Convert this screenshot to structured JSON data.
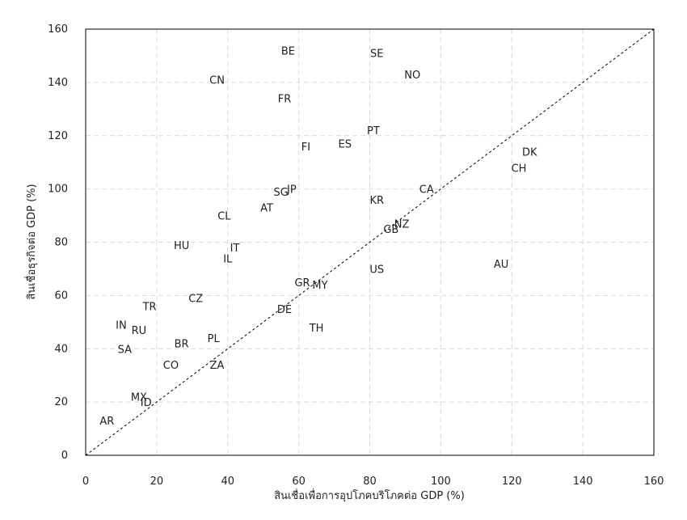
{
  "chart_data": {
    "type": "scatter",
    "xlabel": "สินเชื่อเพื่อการอุปโภคบริโภคต่อ GDP (%)",
    "ylabel": "สินเชื่อธุรกิจต่อ GDP (%)",
    "xlim": [
      0,
      160
    ],
    "ylim": [
      0,
      160
    ],
    "xticks": [
      "0",
      "20",
      "40",
      "60",
      "80",
      "100",
      "120",
      "140",
      "160"
    ],
    "yticks": [
      "0",
      "20",
      "40",
      "60",
      "80",
      "100",
      "120",
      "140",
      "160"
    ],
    "grid": "horizontal and vertical dashed",
    "reference_line": {
      "style": "dotted",
      "from": [
        0,
        0
      ],
      "to": [
        160,
        160
      ]
    },
    "points": [
      {
        "label": "BE",
        "x": 57,
        "y": 152
      },
      {
        "label": "SE",
        "x": 82,
        "y": 151
      },
      {
        "label": "NO",
        "x": 92,
        "y": 143
      },
      {
        "label": "CN",
        "x": 37,
        "y": 141
      },
      {
        "label": "FR",
        "x": 56,
        "y": 134
      },
      {
        "label": "PT",
        "x": 81,
        "y": 122
      },
      {
        "label": "ES",
        "x": 73,
        "y": 117
      },
      {
        "label": "FI",
        "x": 62,
        "y": 116
      },
      {
        "label": "DK",
        "x": 125,
        "y": 114
      },
      {
        "label": "CH",
        "x": 122,
        "y": 108
      },
      {
        "label": "SG",
        "x": 55,
        "y": 99
      },
      {
        "label": "JP",
        "x": 58,
        "y": 100
      },
      {
        "label": "CA",
        "x": 96,
        "y": 100
      },
      {
        "label": "KR",
        "x": 82,
        "y": 96
      },
      {
        "label": "AT",
        "x": 51,
        "y": 93
      },
      {
        "label": "CL",
        "x": 39,
        "y": 90
      },
      {
        "label": "NZ",
        "x": 89,
        "y": 87
      },
      {
        "label": "GB",
        "x": 86,
        "y": 85
      },
      {
        "label": "HU",
        "x": 27,
        "y": 79
      },
      {
        "label": "IT",
        "x": 42,
        "y": 78
      },
      {
        "label": "IL",
        "x": 40,
        "y": 74
      },
      {
        "label": "AU",
        "x": 117,
        "y": 72
      },
      {
        "label": "US",
        "x": 82,
        "y": 70
      },
      {
        "label": "GR",
        "x": 61,
        "y": 65
      },
      {
        "label": "MY",
        "x": 66,
        "y": 64
      },
      {
        "label": "TR",
        "x": 18,
        "y": 56
      },
      {
        "label": "CZ",
        "x": 31,
        "y": 59
      },
      {
        "label": "DE",
        "x": 56,
        "y": 55
      },
      {
        "label": "IN",
        "x": 10,
        "y": 49
      },
      {
        "label": "RU",
        "x": 15,
        "y": 47
      },
      {
        "label": "TH",
        "x": 65,
        "y": 48
      },
      {
        "label": "SA",
        "x": 11,
        "y": 40
      },
      {
        "label": "BR",
        "x": 27,
        "y": 42
      },
      {
        "label": "PL",
        "x": 36,
        "y": 44
      },
      {
        "label": "CO",
        "x": 24,
        "y": 34
      },
      {
        "label": "ZA",
        "x": 37,
        "y": 34
      },
      {
        "label": "MX",
        "x": 15,
        "y": 22
      },
      {
        "label": "ID",
        "x": 17,
        "y": 20
      },
      {
        "label": "AR",
        "x": 6,
        "y": 13
      }
    ]
  }
}
